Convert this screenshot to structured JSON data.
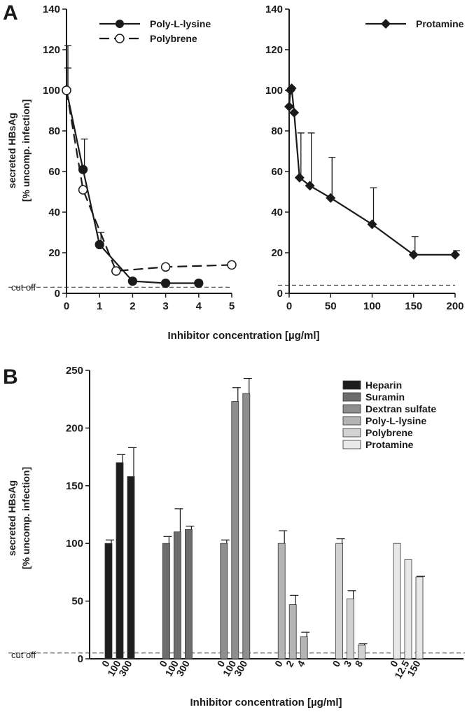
{
  "panel_a": {
    "letter": "A",
    "ylabel_line1": "secreted HBsAg",
    "ylabel_line2": "[% uncomp. infection]",
    "xlabel": "Inhibitor concentration [µg/ml]",
    "cutoff_label": "cut off"
  },
  "panel_b": {
    "letter": "B",
    "ylabel_line1": "secreted HBsAg",
    "ylabel_line2": "[% uncomp. infection]",
    "xlabel": "Inhibitor concentration [µg/ml]",
    "cutoff_label": "cut off"
  },
  "colors": {
    "heparin": "#1e1e1e",
    "suramin": "#6d6d6d",
    "dextran_sulfate": "#8e8e8e",
    "poly_l_lysine": "#b4b4b4",
    "polybrene": "#d2d2d2",
    "protamine": "#e8e8e8",
    "line": "#1a1a1a"
  },
  "chart_data": [
    {
      "type": "line",
      "panel": "A-left",
      "xlim": [
        0,
        5
      ],
      "ylim": [
        0,
        140
      ],
      "xticks": [
        0,
        1,
        2,
        3,
        4,
        5
      ],
      "yticks": [
        0,
        20,
        40,
        60,
        80,
        100,
        120,
        140
      ],
      "cutoff": 3,
      "legend_position": "top-right",
      "series": [
        {
          "name": "Poly-L-lysine",
          "marker": "filled-circle",
          "dash": "solid",
          "x": [
            0,
            0.5,
            1,
            2,
            3,
            4
          ],
          "y": [
            100,
            61,
            24,
            6,
            5,
            5
          ],
          "err": [
            11,
            15,
            6,
            0,
            0,
            0
          ]
        },
        {
          "name": "Polybrene",
          "marker": "open-circle",
          "dash": "dashed",
          "x": [
            0,
            0.5,
            1.5,
            3,
            5
          ],
          "y": [
            100,
            51,
            11,
            13,
            14
          ],
          "err": [
            22,
            0,
            0,
            0,
            0
          ]
        }
      ]
    },
    {
      "type": "line",
      "panel": "A-right",
      "xlim": [
        0,
        200
      ],
      "ylim": [
        0,
        140
      ],
      "xticks": [
        0,
        50,
        100,
        150,
        200
      ],
      "yticks": [
        0,
        20,
        40,
        60,
        80,
        100,
        120,
        140
      ],
      "cutoff": 4,
      "legend_position": "top-right",
      "series": [
        {
          "name": "Protamine",
          "marker": "filled-diamond",
          "dash": "solid",
          "x": [
            0,
            1.5,
            3,
            6,
            12.5,
            25,
            50,
            100,
            150,
            200
          ],
          "y": [
            92,
            100,
            101,
            89,
            57,
            53,
            47,
            34,
            19,
            19
          ],
          "err": [
            0,
            0,
            0,
            0,
            22,
            26,
            20,
            18,
            9,
            2
          ]
        }
      ]
    },
    {
      "type": "bar",
      "panel": "B",
      "ylim": [
        0,
        250
      ],
      "yticks": [
        0,
        50,
        100,
        150,
        200,
        250
      ],
      "cutoff": 5,
      "legend_position": "top-right",
      "groups": [
        {
          "name": "Heparin",
          "color_key": "heparin",
          "categories": [
            "0",
            "100",
            "300"
          ],
          "values": [
            100,
            170,
            158
          ],
          "err": [
            3,
            7,
            25
          ]
        },
        {
          "name": "Suramin",
          "color_key": "suramin",
          "categories": [
            "0",
            "100",
            "300"
          ],
          "values": [
            100,
            110,
            112
          ],
          "err": [
            6,
            20,
            3
          ]
        },
        {
          "name": "Dextran sulfate",
          "color_key": "dextran_sulfate",
          "categories": [
            "0",
            "100",
            "300"
          ],
          "values": [
            100,
            223,
            230
          ],
          "err": [
            3,
            12,
            13
          ]
        },
        {
          "name": "Poly-L-lysine",
          "color_key": "poly_l_lysine",
          "categories": [
            "0",
            "2",
            "4"
          ],
          "values": [
            100,
            47,
            19
          ],
          "err": [
            11,
            8,
            4
          ]
        },
        {
          "name": "Polybrene",
          "color_key": "polybrene",
          "categories": [
            "0",
            "3",
            "8"
          ],
          "values": [
            100,
            52,
            12
          ],
          "err": [
            4,
            7,
            1
          ]
        },
        {
          "name": "Protamine",
          "color_key": "protamine",
          "categories": [
            "0",
            "12.5",
            "150"
          ],
          "values": [
            100,
            86,
            71
          ],
          "err": [
            0,
            0,
            0.5
          ]
        }
      ]
    }
  ]
}
